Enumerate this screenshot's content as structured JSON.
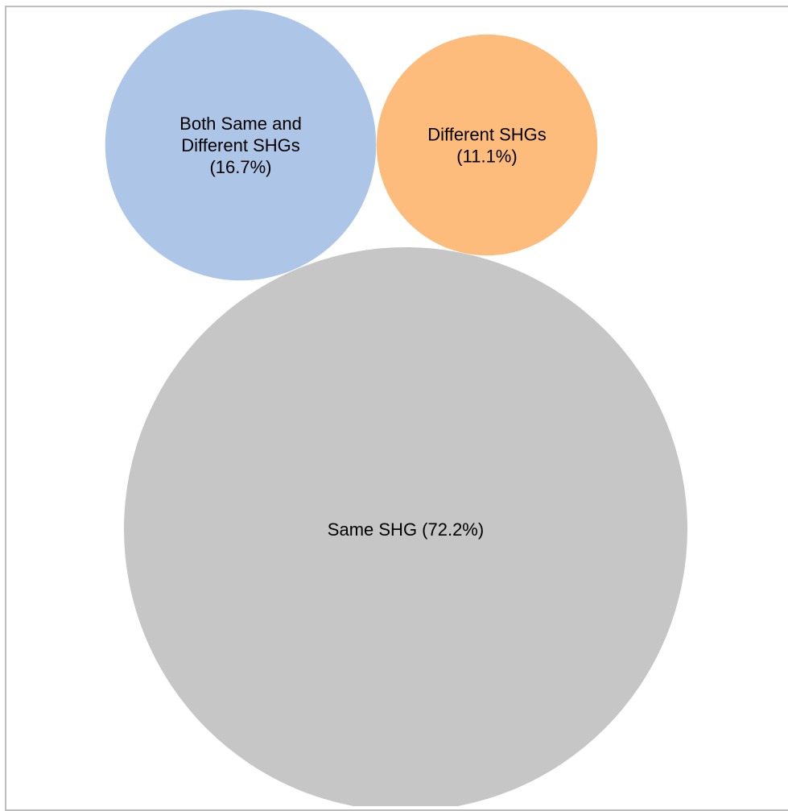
{
  "chart_data": {
    "type": "bubble",
    "title": "",
    "items": [
      {
        "category": "Both Same and Different SHGs",
        "value": 16.7,
        "label_lines": [
          "Both Same and",
          "Different SHGs",
          "(16.7%)"
        ],
        "color": "#adc5e7"
      },
      {
        "category": "Different SHGs",
        "value": 11.1,
        "label_lines": [
          "Different SHGs",
          "(11.1%)"
        ],
        "color": "#fdbb7c"
      },
      {
        "category": "Same SHG",
        "value": 72.2,
        "label_lines": [
          "Same SHG (72.2%)"
        ],
        "color": "#c6c6c6"
      }
    ],
    "legend": "none",
    "grid": false
  },
  "colors": {
    "frame_border": "#bdbdbd",
    "background": "#ffffff",
    "text": "#000000"
  }
}
